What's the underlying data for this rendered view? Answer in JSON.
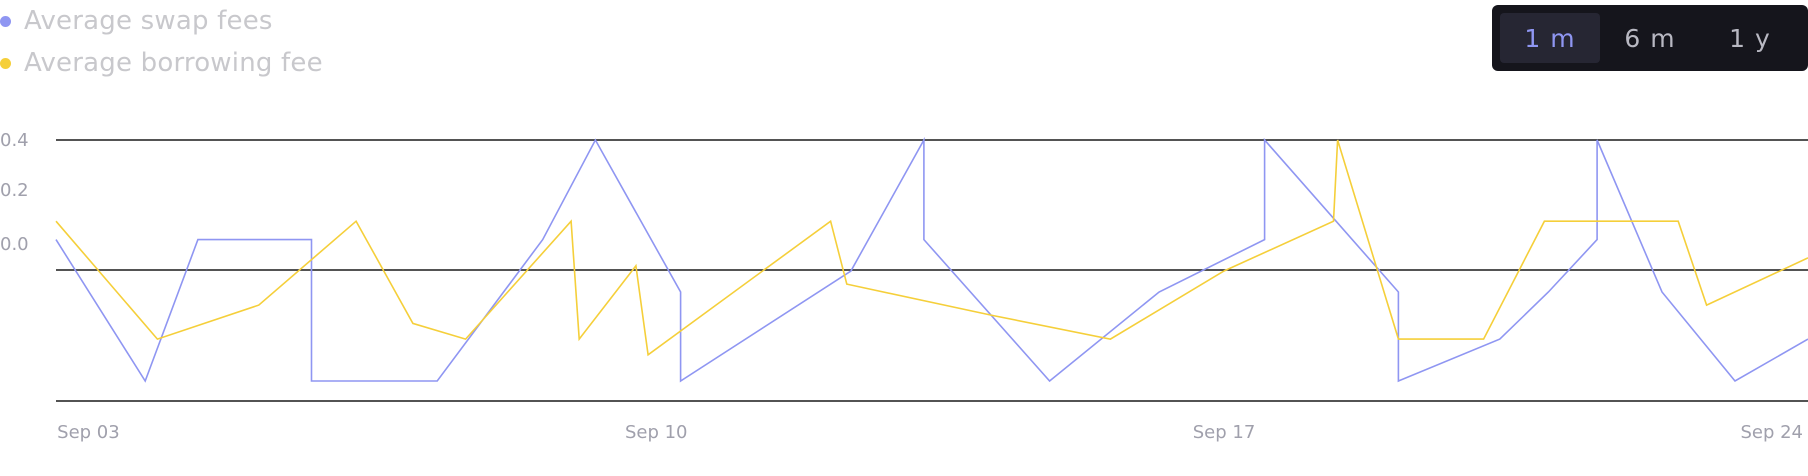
{
  "legend": [
    {
      "label": "Average swap fees",
      "color": "#8f96f2"
    },
    {
      "label": "Average borrowing fee",
      "color": "#f5cf3a"
    }
  ],
  "range_toggle": {
    "options": [
      "1 m",
      "6 m",
      "1 y"
    ],
    "selected": "1 m"
  },
  "chart_data": {
    "type": "line",
    "title": "",
    "xlabel": "",
    "ylabel": "",
    "grid": "horizontal",
    "legend_position": "top-left",
    "y_ticks": [
      0.4,
      0.2,
      0.0
    ],
    "x_ticks": [
      {
        "label": "Sep 03",
        "day": 3
      },
      {
        "label": "Sep 10",
        "day": 10
      },
      {
        "label": "Sep 17",
        "day": 17
      },
      {
        "label": "Sep 24",
        "day": 24
      }
    ],
    "xlim": [
      2.6,
      24.2
    ],
    "ylim": [
      -0.6,
      0.4
    ],
    "series": [
      {
        "name": "Average swap fees",
        "color": "#8f96f2",
        "points": [
          [
            2.6,
            0.02
          ],
          [
            3.7,
            -0.52
          ],
          [
            4.35,
            0.02
          ],
          [
            5.75,
            0.02
          ],
          [
            5.75,
            -0.52
          ],
          [
            7.3,
            -0.52
          ],
          [
            8.6,
            0.02
          ],
          [
            9.25,
            0.4
          ],
          [
            10.3,
            -0.18
          ],
          [
            10.3,
            -0.52
          ],
          [
            12.4,
            -0.1
          ],
          [
            13.3,
            0.4
          ],
          [
            13.3,
            0.02
          ],
          [
            14.85,
            -0.52
          ],
          [
            16.2,
            -0.18
          ],
          [
            17.5,
            0.02
          ],
          [
            17.5,
            0.4
          ],
          [
            19.15,
            -0.18
          ],
          [
            19.15,
            -0.52
          ],
          [
            20.4,
            -0.36
          ],
          [
            21.0,
            -0.18
          ],
          [
            21.6,
            0.02
          ],
          [
            21.6,
            0.4
          ],
          [
            22.4,
            -0.18
          ],
          [
            23.3,
            -0.52
          ],
          [
            24.2,
            -0.36
          ]
        ]
      },
      {
        "name": "Average borrowing fee",
        "color": "#f5cf3a",
        "points": [
          [
            2.6,
            0.09
          ],
          [
            3.85,
            -0.36
          ],
          [
            5.1,
            -0.23
          ],
          [
            6.3,
            0.09
          ],
          [
            7.0,
            -0.3
          ],
          [
            7.65,
            -0.36
          ],
          [
            8.95,
            0.09
          ],
          [
            9.05,
            -0.36
          ],
          [
            9.75,
            -0.08
          ],
          [
            9.9,
            -0.42
          ],
          [
            12.15,
            0.09
          ],
          [
            12.35,
            -0.15
          ],
          [
            14.15,
            -0.27
          ],
          [
            15.6,
            -0.36
          ],
          [
            17.0,
            -0.1
          ],
          [
            18.35,
            0.09
          ],
          [
            18.4,
            0.4
          ],
          [
            19.15,
            -0.36
          ],
          [
            20.2,
            -0.36
          ],
          [
            20.95,
            0.09
          ],
          [
            22.6,
            0.09
          ],
          [
            22.95,
            -0.23
          ],
          [
            24.2,
            -0.05
          ]
        ]
      }
    ]
  }
}
